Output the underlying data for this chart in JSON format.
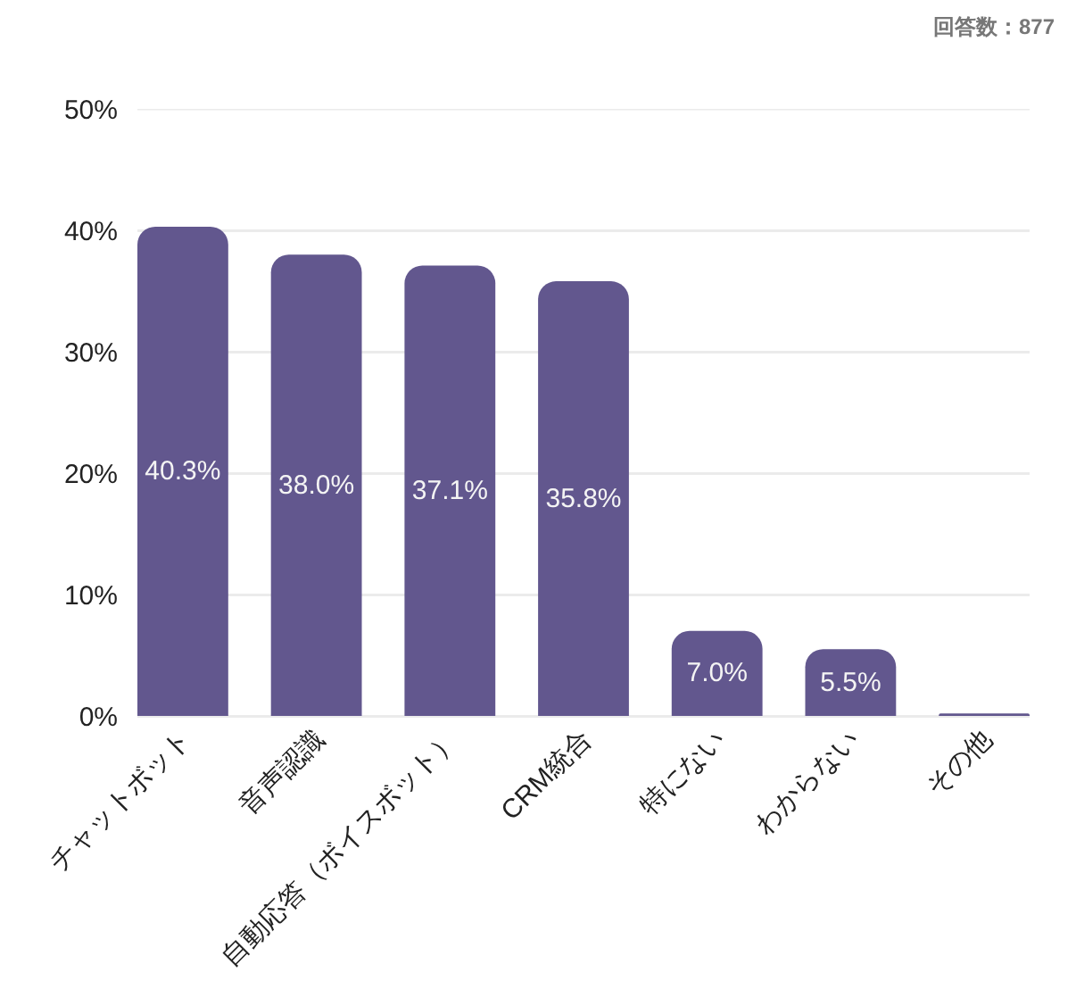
{
  "chart_data": {
    "type": "bar",
    "annotations": [
      "回答数：877"
    ],
    "categories": [
      "チャットボット",
      "音声認識",
      "自動応答（ボイスボット）",
      "CRM統合",
      "特にない",
      "わからない",
      "その他"
    ],
    "values": [
      40.3,
      38.0,
      37.1,
      35.8,
      7.0,
      5.5,
      0.2
    ],
    "color": "#62578e",
    "value_labels": [
      "40.3%",
      "38.0%",
      "37.1%",
      "35.8%",
      "7.0%",
      "5.5%",
      null
    ],
    "ylim": [
      0,
      50
    ],
    "yticks": [
      {
        "value": 0,
        "label": "0%"
      },
      {
        "value": 10,
        "label": "10%"
      },
      {
        "value": 20,
        "label": "20%"
      },
      {
        "value": 30,
        "label": "30%"
      },
      {
        "value": 40,
        "label": "40%"
      },
      {
        "value": 50,
        "label": "50%"
      }
    ],
    "grid": "y"
  }
}
